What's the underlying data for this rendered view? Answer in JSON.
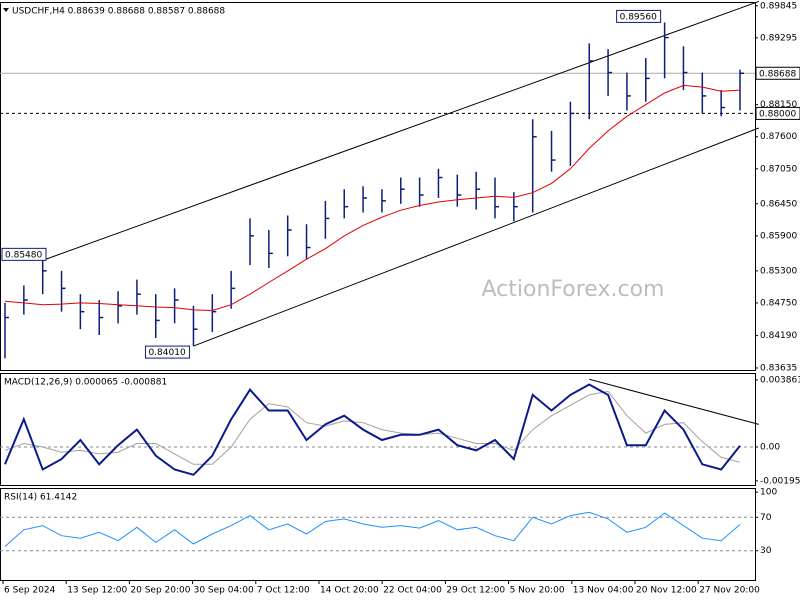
{
  "chart_data": [
    {
      "type": "ohlc",
      "title": "USDCHF,H4 0.88639 0.88688 0.88587 0.88688",
      "watermark": "ActionForex.com",
      "color": "#0b1f7a",
      "ylim": [
        0.836,
        0.8991
      ],
      "yticks": [
        0.89845,
        0.89295,
        {
          "value": 0.8815,
          "label": "0.88150"
        },
        {
          "value": 0.876,
          "label": "0.87600"
        },
        {
          "value": 0.8705,
          "label": "0.87050"
        },
        {
          "value": 0.8645,
          "label": "0.86450"
        },
        {
          "value": 0.859,
          "label": "0.85900"
        },
        {
          "value": 0.853,
          "label": "0.85300"
        },
        {
          "value": 0.8475,
          "label": "0.84750"
        },
        {
          "value": 0.8419,
          "label": "0.84190"
        },
        0.83635
      ],
      "high": [
        0.8475,
        0.8505,
        0.8548,
        0.853,
        0.849,
        0.848,
        0.8495,
        0.8515,
        0.849,
        0.85,
        0.847,
        0.849,
        0.853,
        0.862,
        0.86,
        0.8625,
        0.861,
        0.865,
        0.867,
        0.8675,
        0.867,
        0.869,
        0.869,
        0.8705,
        0.8695,
        0.87,
        0.869,
        0.8665,
        0.879,
        0.877,
        0.882,
        0.892,
        0.891,
        0.887,
        0.8895,
        0.8956,
        0.8915,
        0.887,
        0.884,
        0.8875
      ],
      "low": [
        0.838,
        0.8455,
        0.849,
        0.846,
        0.843,
        0.842,
        0.844,
        0.8455,
        0.8415,
        0.844,
        0.8401,
        0.8425,
        0.8465,
        0.854,
        0.8535,
        0.8555,
        0.855,
        0.8585,
        0.862,
        0.863,
        0.863,
        0.8645,
        0.864,
        0.8655,
        0.864,
        0.8635,
        0.862,
        0.8615,
        0.863,
        0.87,
        0.871,
        0.879,
        0.883,
        0.8805,
        0.882,
        0.886,
        0.884,
        0.88,
        0.8795,
        0.8805
      ],
      "close": [
        0.845,
        0.848,
        0.853,
        0.85,
        0.846,
        0.845,
        0.847,
        0.849,
        0.8445,
        0.848,
        0.843,
        0.846,
        0.85,
        0.859,
        0.856,
        0.86,
        0.857,
        0.862,
        0.864,
        0.8655,
        0.865,
        0.867,
        0.866,
        0.869,
        0.866,
        0.867,
        0.864,
        0.864,
        0.876,
        0.872,
        0.88,
        0.889,
        0.887,
        0.883,
        0.886,
        0.893,
        0.887,
        0.883,
        0.881,
        0.88688
      ],
      "ma": {
        "color": "#e00000",
        "values": [
          0.8478,
          0.8475,
          0.8472,
          0.8473,
          0.8475,
          0.8474,
          0.8472,
          0.847,
          0.8468,
          0.8467,
          0.8463,
          0.8462,
          0.8472,
          0.849,
          0.851,
          0.853,
          0.855,
          0.8568,
          0.859,
          0.8608,
          0.8622,
          0.8634,
          0.8642,
          0.8648,
          0.8652,
          0.8655,
          0.8658,
          0.8656,
          0.8664,
          0.868,
          0.8705,
          0.874,
          0.877,
          0.8795,
          0.8815,
          0.8835,
          0.8848,
          0.8845,
          0.8838,
          0.884
        ]
      },
      "price_lines": [
        {
          "value": 0.88688,
          "label": "0.88688",
          "dashed": false
        },
        {
          "value": 0.88,
          "label": "0.88000",
          "dashed": true
        }
      ],
      "annotations": [
        {
          "value": 0.8956,
          "label": "0.89560"
        },
        {
          "value": 0.8548,
          "label": "0.85480"
        },
        {
          "value": 0.8401,
          "label": "0.84010"
        }
      ],
      "trendlines": [
        {
          "start": [
            2,
            0.8548
          ],
          "end": [
            40,
            0.8992
          ]
        },
        {
          "start": [
            10,
            0.8401
          ],
          "end": [
            40,
            0.8775
          ]
        }
      ]
    },
    {
      "type": "macd",
      "title": "MACD(12,26,9) 0.000065 -0.000881",
      "ylim": [
        -0.00219,
        0.00426
      ],
      "yticks": [
        0.003861,
        {
          "value": 0,
          "label": "0.00"
        },
        -0.00195
      ],
      "levels": [
        0
      ],
      "macd": {
        "color": "#0a1a8c",
        "values": [
          -0.001,
          0.0016,
          -0.0013,
          -0.0007,
          0.0004,
          -0.001,
          0.0001,
          0.001,
          -0.0005,
          -0.0013,
          -0.0016,
          -0.0005,
          0.0016,
          0.0033,
          0.0021,
          0.0021,
          0.0004,
          0.0013,
          0.0018,
          0.001,
          0.0004,
          0.0007,
          0.0007,
          0.001,
          0.0001,
          -0.0002,
          0.0004,
          -0.0007,
          0.003,
          0.0021,
          0.003,
          0.0036,
          0.003,
          0.0001,
          0.0001,
          0.0021,
          0.001,
          -0.001,
          -0.0013,
          6.5e-05
        ]
      },
      "signal": {
        "color": "#a0a0a0",
        "values": [
          -0.0002,
          0.0002,
          0,
          -0.0003,
          -0.0002,
          -0.0004,
          -0.0003,
          0.0002,
          0.0002,
          -0.0004,
          -0.001,
          -0.001,
          0,
          0.0016,
          0.0025,
          0.0023,
          0.0014,
          0.0012,
          0.0015,
          0.0014,
          0.001,
          0.0008,
          0.0007,
          0.0008,
          0.0005,
          0.0002,
          0.0002,
          -0.0002,
          0.001,
          0.0018,
          0.0024,
          0.003,
          0.0032,
          0.0018,
          0.0008,
          0.0013,
          0.0014,
          0.0003,
          -0.0006,
          -0.000881
        ]
      },
      "trendlines": [
        {
          "start": [
            31,
            0.0039
          ],
          "end": [
            40,
            0.0013
          ]
        }
      ]
    },
    {
      "type": "rsi",
      "title": "RSI(14) 61.4142",
      "ylim": [
        -5,
        105
      ],
      "yticks": [
        100,
        70,
        30
      ],
      "levels": [
        70,
        30
      ],
      "rsi": {
        "color": "#1e90ff",
        "values": [
          35,
          55,
          60,
          48,
          45,
          52,
          42,
          58,
          40,
          55,
          38,
          50,
          60,
          72,
          55,
          62,
          50,
          65,
          68,
          62,
          58,
          60,
          57,
          66,
          55,
          58,
          48,
          42,
          70,
          62,
          72,
          76,
          68,
          52,
          58,
          75,
          60,
          45,
          42,
          61.4142
        ]
      },
      "xlabels": [
        "6 Sep 2024",
        "13 Sep 12:00",
        "20 Sep 20:00",
        "30 Sep 04:00",
        "7 Oct 12:00",
        "14 Oct 20:00",
        "22 Oct 04:00",
        "29 Oct 12:00",
        "5 Nov 20:00",
        "13 Nov 04:00",
        "20 Nov 12:00",
        "27 Nov 20:00"
      ]
    }
  ]
}
